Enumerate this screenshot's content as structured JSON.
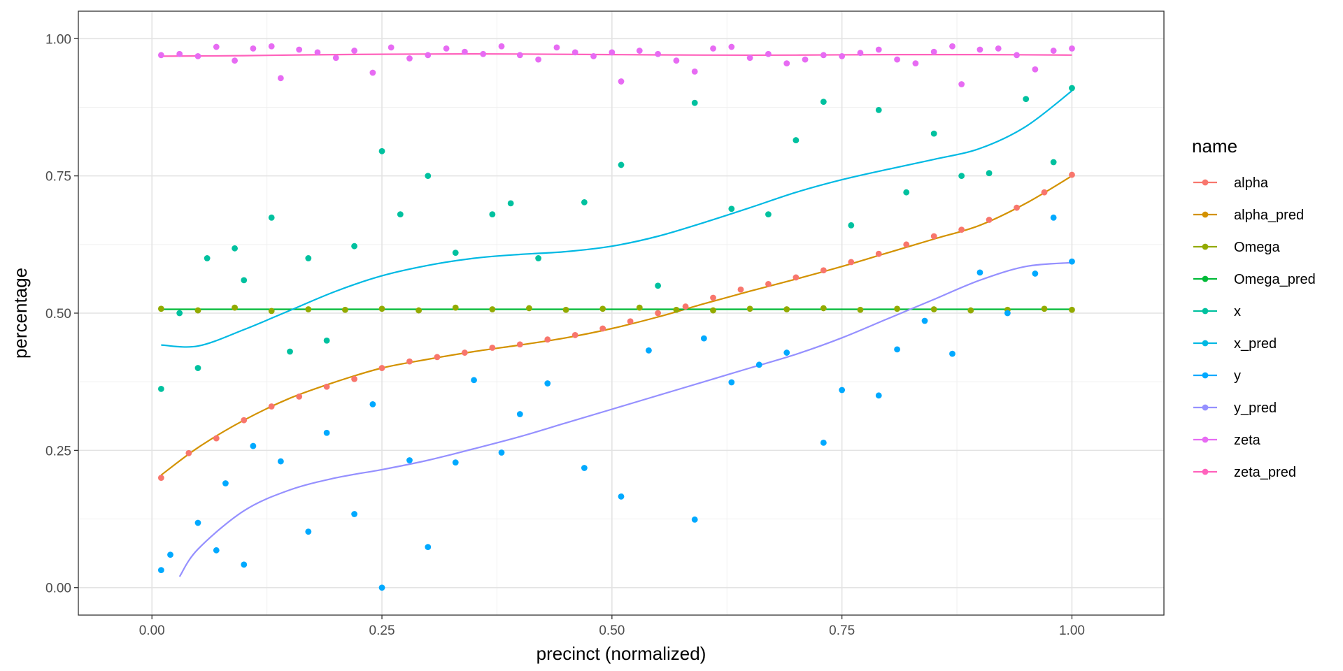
{
  "chart_data": {
    "type": "scatter",
    "xlabel": "precinct (normalized)",
    "ylabel": "percentage",
    "xlim": [
      -0.08,
      1.1
    ],
    "ylim": [
      -0.05,
      1.05
    ],
    "x_ticks": [
      0.0,
      0.25,
      0.5,
      0.75,
      1.0
    ],
    "x_tick_labels": [
      "0.00",
      "0.25",
      "0.50",
      "0.75",
      "1.00"
    ],
    "y_ticks": [
      0.0,
      0.25,
      0.5,
      0.75,
      1.0
    ],
    "y_tick_labels": [
      "0.00",
      "0.25",
      "0.50",
      "0.75",
      "1.00"
    ],
    "grid": true,
    "legend": {
      "title": "name",
      "placement": "right",
      "entries": [
        {
          "label": "alpha",
          "color": "#F8766D"
        },
        {
          "label": "alpha_pred",
          "color": "#D39200"
        },
        {
          "label": "Omega",
          "color": "#93AA00"
        },
        {
          "label": "Omega_pred",
          "color": "#00BA38"
        },
        {
          "label": "x",
          "color": "#00C19F"
        },
        {
          "label": "x_pred",
          "color": "#00B9E3"
        },
        {
          "label": "y",
          "color": "#00A9FF"
        },
        {
          "label": "y_pred",
          "color": "#9590FF"
        },
        {
          "label": "zeta",
          "color": "#E76BF3"
        },
        {
          "label": "zeta_pred",
          "color": "#FF62BC"
        }
      ]
    },
    "series": [
      {
        "name": "alpha",
        "color": "#F8766D",
        "mark": "points",
        "x": [
          0.01,
          0.04,
          0.07,
          0.1,
          0.13,
          0.16,
          0.19,
          0.22,
          0.25,
          0.28,
          0.31,
          0.34,
          0.37,
          0.4,
          0.43,
          0.46,
          0.49,
          0.52,
          0.55,
          0.58,
          0.61,
          0.64,
          0.67,
          0.7,
          0.73,
          0.76,
          0.79,
          0.82,
          0.85,
          0.88,
          0.91,
          0.94,
          0.97,
          1.0
        ],
        "y": [
          0.2,
          0.245,
          0.272,
          0.305,
          0.33,
          0.348,
          0.366,
          0.38,
          0.4,
          0.412,
          0.42,
          0.428,
          0.437,
          0.443,
          0.452,
          0.46,
          0.472,
          0.485,
          0.5,
          0.512,
          0.528,
          0.543,
          0.553,
          0.565,
          0.578,
          0.593,
          0.608,
          0.625,
          0.64,
          0.652,
          0.67,
          0.692,
          0.72,
          0.752
        ]
      },
      {
        "name": "alpha_pred",
        "color": "#D39200",
        "mark": "line",
        "x": [
          0.01,
          0.05,
          0.1,
          0.15,
          0.2,
          0.25,
          0.3,
          0.35,
          0.4,
          0.45,
          0.5,
          0.55,
          0.6,
          0.65,
          0.7,
          0.75,
          0.8,
          0.85,
          0.9,
          0.95,
          1.0
        ],
        "y": [
          0.205,
          0.255,
          0.305,
          0.345,
          0.375,
          0.4,
          0.416,
          0.43,
          0.442,
          0.455,
          0.472,
          0.493,
          0.517,
          0.54,
          0.562,
          0.585,
          0.61,
          0.635,
          0.66,
          0.7,
          0.75
        ]
      },
      {
        "name": "Omega",
        "color": "#93AA00",
        "mark": "points",
        "x": [
          0.01,
          0.05,
          0.09,
          0.13,
          0.17,
          0.21,
          0.25,
          0.29,
          0.33,
          0.37,
          0.41,
          0.45,
          0.49,
          0.53,
          0.57,
          0.61,
          0.65,
          0.69,
          0.73,
          0.77,
          0.81,
          0.85,
          0.89,
          0.93,
          0.97,
          1.0
        ],
        "y": [
          0.508,
          0.505,
          0.51,
          0.504,
          0.507,
          0.506,
          0.508,
          0.505,
          0.51,
          0.507,
          0.509,
          0.506,
          0.508,
          0.51,
          0.506,
          0.505,
          0.508,
          0.507,
          0.509,
          0.506,
          0.508,
          0.507,
          0.505,
          0.506,
          0.508,
          0.506
        ]
      },
      {
        "name": "Omega_pred",
        "color": "#00BA38",
        "mark": "line",
        "x": [
          0.01,
          1.0
        ],
        "y": [
          0.507,
          0.507
        ]
      },
      {
        "name": "x",
        "color": "#00C19F",
        "mark": "points",
        "x": [
          0.01,
          0.03,
          0.05,
          0.06,
          0.09,
          0.1,
          0.13,
          0.15,
          0.17,
          0.19,
          0.22,
          0.25,
          0.27,
          0.3,
          0.33,
          0.37,
          0.39,
          0.42,
          0.47,
          0.51,
          0.55,
          0.59,
          0.63,
          0.67,
          0.7,
          0.73,
          0.76,
          0.79,
          0.82,
          0.85,
          0.88,
          0.91,
          0.95,
          0.98,
          1.0
        ],
        "y": [
          0.362,
          0.5,
          0.4,
          0.6,
          0.618,
          0.56,
          0.674,
          0.43,
          0.6,
          0.45,
          0.622,
          0.795,
          0.68,
          0.75,
          0.61,
          0.68,
          0.7,
          0.6,
          0.702,
          0.77,
          0.55,
          0.883,
          0.69,
          0.68,
          0.815,
          0.885,
          0.66,
          0.87,
          0.72,
          0.827,
          0.75,
          0.755,
          0.89,
          0.775,
          0.91
        ]
      },
      {
        "name": "x_pred",
        "color": "#00B9E3",
        "mark": "line",
        "x": [
          0.01,
          0.05,
          0.1,
          0.15,
          0.2,
          0.25,
          0.3,
          0.35,
          0.4,
          0.45,
          0.5,
          0.55,
          0.6,
          0.65,
          0.7,
          0.75,
          0.8,
          0.85,
          0.9,
          0.95,
          1.0
        ],
        "y": [
          0.442,
          0.44,
          0.47,
          0.505,
          0.54,
          0.568,
          0.587,
          0.6,
          0.607,
          0.612,
          0.622,
          0.64,
          0.665,
          0.692,
          0.72,
          0.743,
          0.762,
          0.78,
          0.8,
          0.84,
          0.905
        ]
      },
      {
        "name": "y",
        "color": "#00A9FF",
        "mark": "points",
        "x": [
          0.01,
          0.02,
          0.05,
          0.07,
          0.08,
          0.1,
          0.11,
          0.14,
          0.17,
          0.19,
          0.22,
          0.24,
          0.25,
          0.28,
          0.3,
          0.33,
          0.35,
          0.38,
          0.4,
          0.43,
          0.47,
          0.51,
          0.54,
          0.59,
          0.6,
          0.63,
          0.66,
          0.69,
          0.73,
          0.75,
          0.79,
          0.81,
          0.84,
          0.87,
          0.9,
          0.93,
          0.96,
          0.98,
          1.0
        ],
        "y": [
          0.032,
          0.06,
          0.118,
          0.068,
          0.19,
          0.042,
          0.258,
          0.23,
          0.102,
          0.282,
          0.134,
          0.334,
          0.0,
          0.232,
          0.074,
          0.228,
          0.378,
          0.246,
          0.316,
          0.372,
          0.218,
          0.166,
          0.432,
          0.124,
          0.454,
          0.374,
          0.406,
          0.428,
          0.264,
          0.36,
          0.35,
          0.434,
          0.486,
          0.426,
          0.574,
          0.5,
          0.572,
          0.674,
          0.594
        ]
      },
      {
        "name": "y_pred",
        "color": "#9590FF",
        "mark": "line",
        "x": [
          0.03,
          0.05,
          0.1,
          0.15,
          0.2,
          0.25,
          0.3,
          0.35,
          0.4,
          0.45,
          0.5,
          0.55,
          0.6,
          0.65,
          0.7,
          0.75,
          0.8,
          0.85,
          0.9,
          0.95,
          1.0
        ],
        "y": [
          0.02,
          0.07,
          0.14,
          0.178,
          0.2,
          0.215,
          0.232,
          0.253,
          0.275,
          0.3,
          0.325,
          0.35,
          0.375,
          0.4,
          0.425,
          0.455,
          0.49,
          0.525,
          0.56,
          0.585,
          0.592
        ]
      },
      {
        "name": "zeta",
        "color": "#E76BF3",
        "mark": "points",
        "x": [
          0.01,
          0.03,
          0.05,
          0.07,
          0.09,
          0.11,
          0.13,
          0.14,
          0.16,
          0.18,
          0.2,
          0.22,
          0.24,
          0.26,
          0.28,
          0.3,
          0.32,
          0.34,
          0.36,
          0.38,
          0.4,
          0.42,
          0.44,
          0.46,
          0.48,
          0.5,
          0.51,
          0.53,
          0.55,
          0.57,
          0.59,
          0.61,
          0.63,
          0.65,
          0.67,
          0.69,
          0.71,
          0.73,
          0.75,
          0.77,
          0.79,
          0.81,
          0.83,
          0.85,
          0.87,
          0.88,
          0.9,
          0.92,
          0.94,
          0.96,
          0.98,
          1.0
        ],
        "y": [
          0.97,
          0.972,
          0.968,
          0.985,
          0.96,
          0.982,
          0.986,
          0.928,
          0.98,
          0.975,
          0.965,
          0.978,
          0.938,
          0.984,
          0.964,
          0.97,
          0.982,
          0.976,
          0.972,
          0.986,
          0.97,
          0.962,
          0.984,
          0.975,
          0.968,
          0.975,
          0.922,
          0.978,
          0.972,
          0.96,
          0.94,
          0.982,
          0.985,
          0.965,
          0.972,
          0.955,
          0.962,
          0.97,
          0.968,
          0.974,
          0.98,
          0.962,
          0.955,
          0.976,
          0.986,
          0.917,
          0.98,
          0.982,
          0.97,
          0.944,
          0.978,
          0.982
        ]
      },
      {
        "name": "zeta_pred",
        "color": "#FF62BC",
        "mark": "line",
        "x": [
          0.01,
          0.1,
          0.2,
          0.3,
          0.4,
          0.5,
          0.6,
          0.7,
          0.8,
          0.9,
          1.0
        ],
        "y": [
          0.968,
          0.969,
          0.971,
          0.972,
          0.972,
          0.971,
          0.97,
          0.97,
          0.971,
          0.971,
          0.97
        ]
      }
    ]
  }
}
